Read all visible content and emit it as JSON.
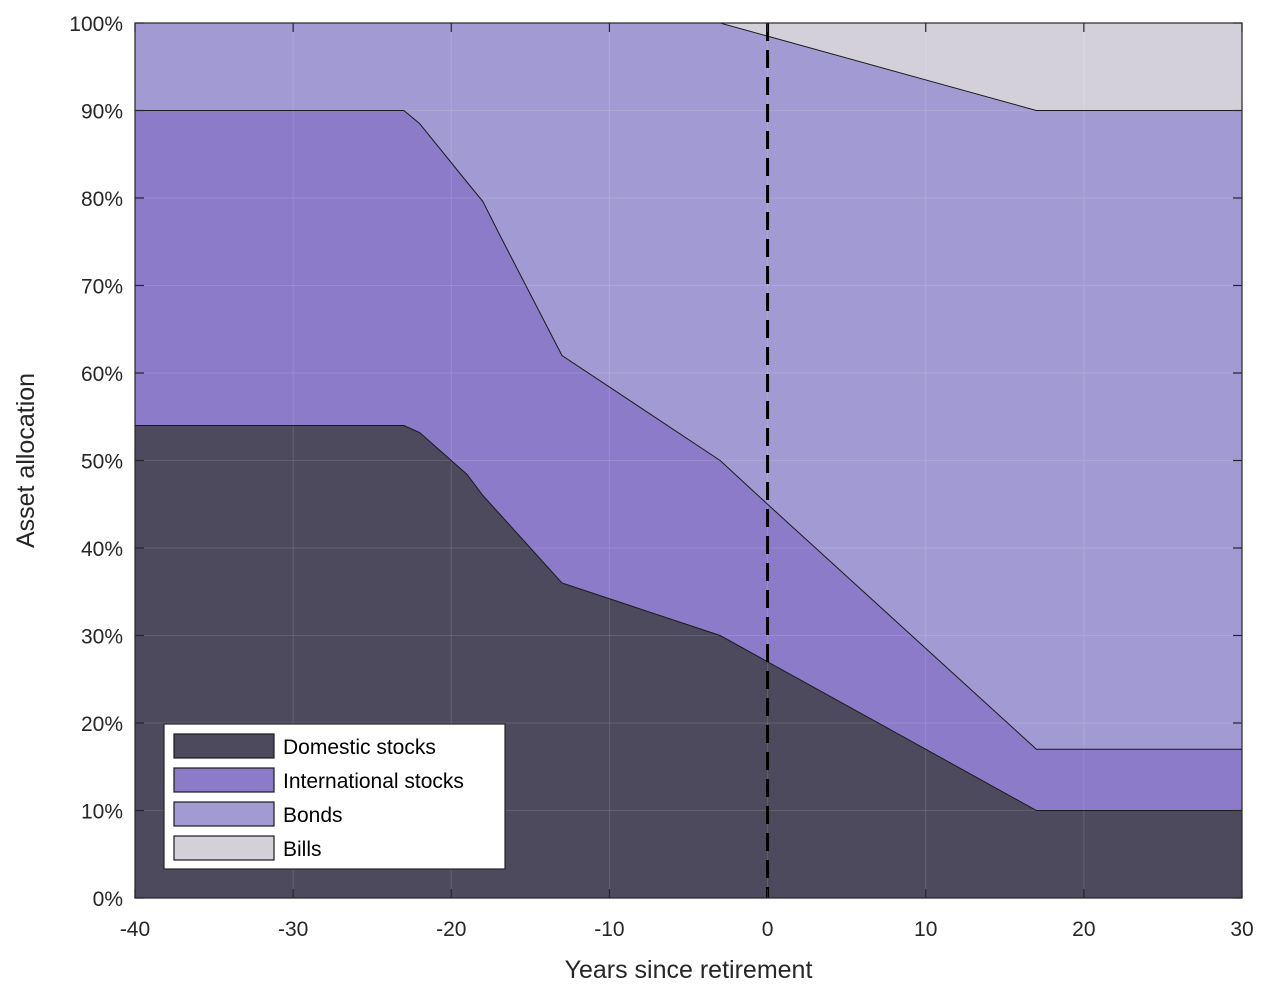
{
  "chart_data": {
    "type": "area",
    "stacked": true,
    "xlabel": "Years since retirement",
    "ylabel": "Asset allocation",
    "xlim": [
      -40,
      30
    ],
    "ylim": [
      0,
      100
    ],
    "x_ticks": [
      -40,
      -30,
      -20,
      -10,
      0,
      10,
      20,
      30
    ],
    "y_ticks": [
      0,
      10,
      20,
      30,
      40,
      50,
      60,
      70,
      80,
      90,
      100
    ],
    "x_tick_labels": [
      "-40",
      "-30",
      "-20",
      "-10",
      "0",
      "10",
      "20",
      "30"
    ],
    "y_tick_labels": [
      "0%",
      "10%",
      "20%",
      "30%",
      "40%",
      "50%",
      "60%",
      "70%",
      "80%",
      "90%",
      "100%"
    ],
    "grid": true,
    "legend_position": "bottom-left",
    "retirement_marker_x": 0,
    "x": [
      -40,
      -23,
      -22,
      -19,
      -18,
      -17,
      -13,
      -3,
      0,
      17,
      30
    ],
    "series": [
      {
        "name": "Domestic stocks",
        "color": "#4d4a5d",
        "values": [
          54,
          54,
          53.2,
          48.4,
          46,
          44,
          36,
          30,
          27,
          10,
          10
        ]
      },
      {
        "name": "International stocks",
        "color": "#8b7bc9",
        "values": [
          36,
          36,
          35.3,
          33.4,
          33.6,
          32,
          26,
          20,
          18,
          7,
          7
        ]
      },
      {
        "name": "Bonds",
        "color": "#a29bd3",
        "values": [
          10,
          10,
          11.5,
          18.2,
          20.4,
          24,
          38,
          50,
          53.5,
          73,
          73
        ]
      },
      {
        "name": "Bills",
        "color": "#d3d0d9",
        "values": [
          0,
          0,
          0,
          0,
          0,
          0,
          0,
          0,
          1.5,
          10,
          10
        ]
      }
    ]
  }
}
